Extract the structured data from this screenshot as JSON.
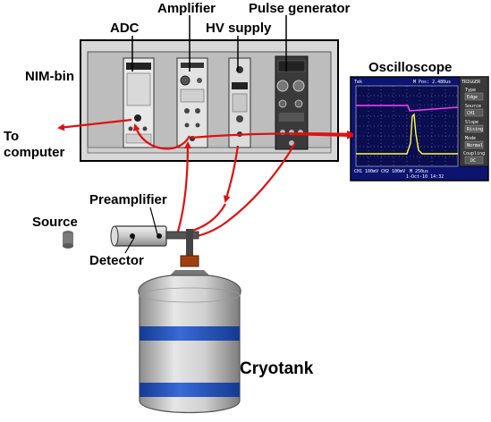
{
  "labels": {
    "adc": "ADC",
    "amplifier": "Amplifier",
    "hv_supply": "HV supply",
    "pulse_generator": "Pulse generator",
    "nim_bin": "NIM-bin",
    "oscilloscope": "Oscilloscope",
    "to_computer_line1": "To",
    "to_computer_line2": "computer",
    "source": "Source",
    "preamplifier": "Preamplifier",
    "detector": "Detector",
    "cryotank": "Cryotank"
  },
  "oscilloscope_screen": {
    "top_left": "Tek",
    "top_status": "M Pos: 2.480us",
    "trigger": "TRIGGER",
    "menu": [
      {
        "label": "Type",
        "value": "Edge"
      },
      {
        "label": "Source",
        "value": "CH1"
      },
      {
        "label": "Slope",
        "value": "Rising"
      },
      {
        "label": "Mode",
        "value": "Normal"
      },
      {
        "label": "Coupling",
        "value": "DC"
      }
    ],
    "bottom_ch1": "CH1 100mV",
    "bottom_ch2": "CH2 100mV",
    "bottom_m": "M 250us",
    "bottom_date": "1-Oct-10 14:32",
    "colors": {
      "background": "#0d1470",
      "trace_ch1": "#ffff40",
      "trace_ch2": "#ff40ff",
      "grid": "#ffffff",
      "menu_panel": "#3a3a3a"
    }
  },
  "colors": {
    "cable": "#e01010",
    "nim_bin": "#d4d4d4",
    "cryotank_body": "#c0c0c0",
    "cryotank_band": "#2050c0",
    "neck_cap": "#a04010"
  }
}
